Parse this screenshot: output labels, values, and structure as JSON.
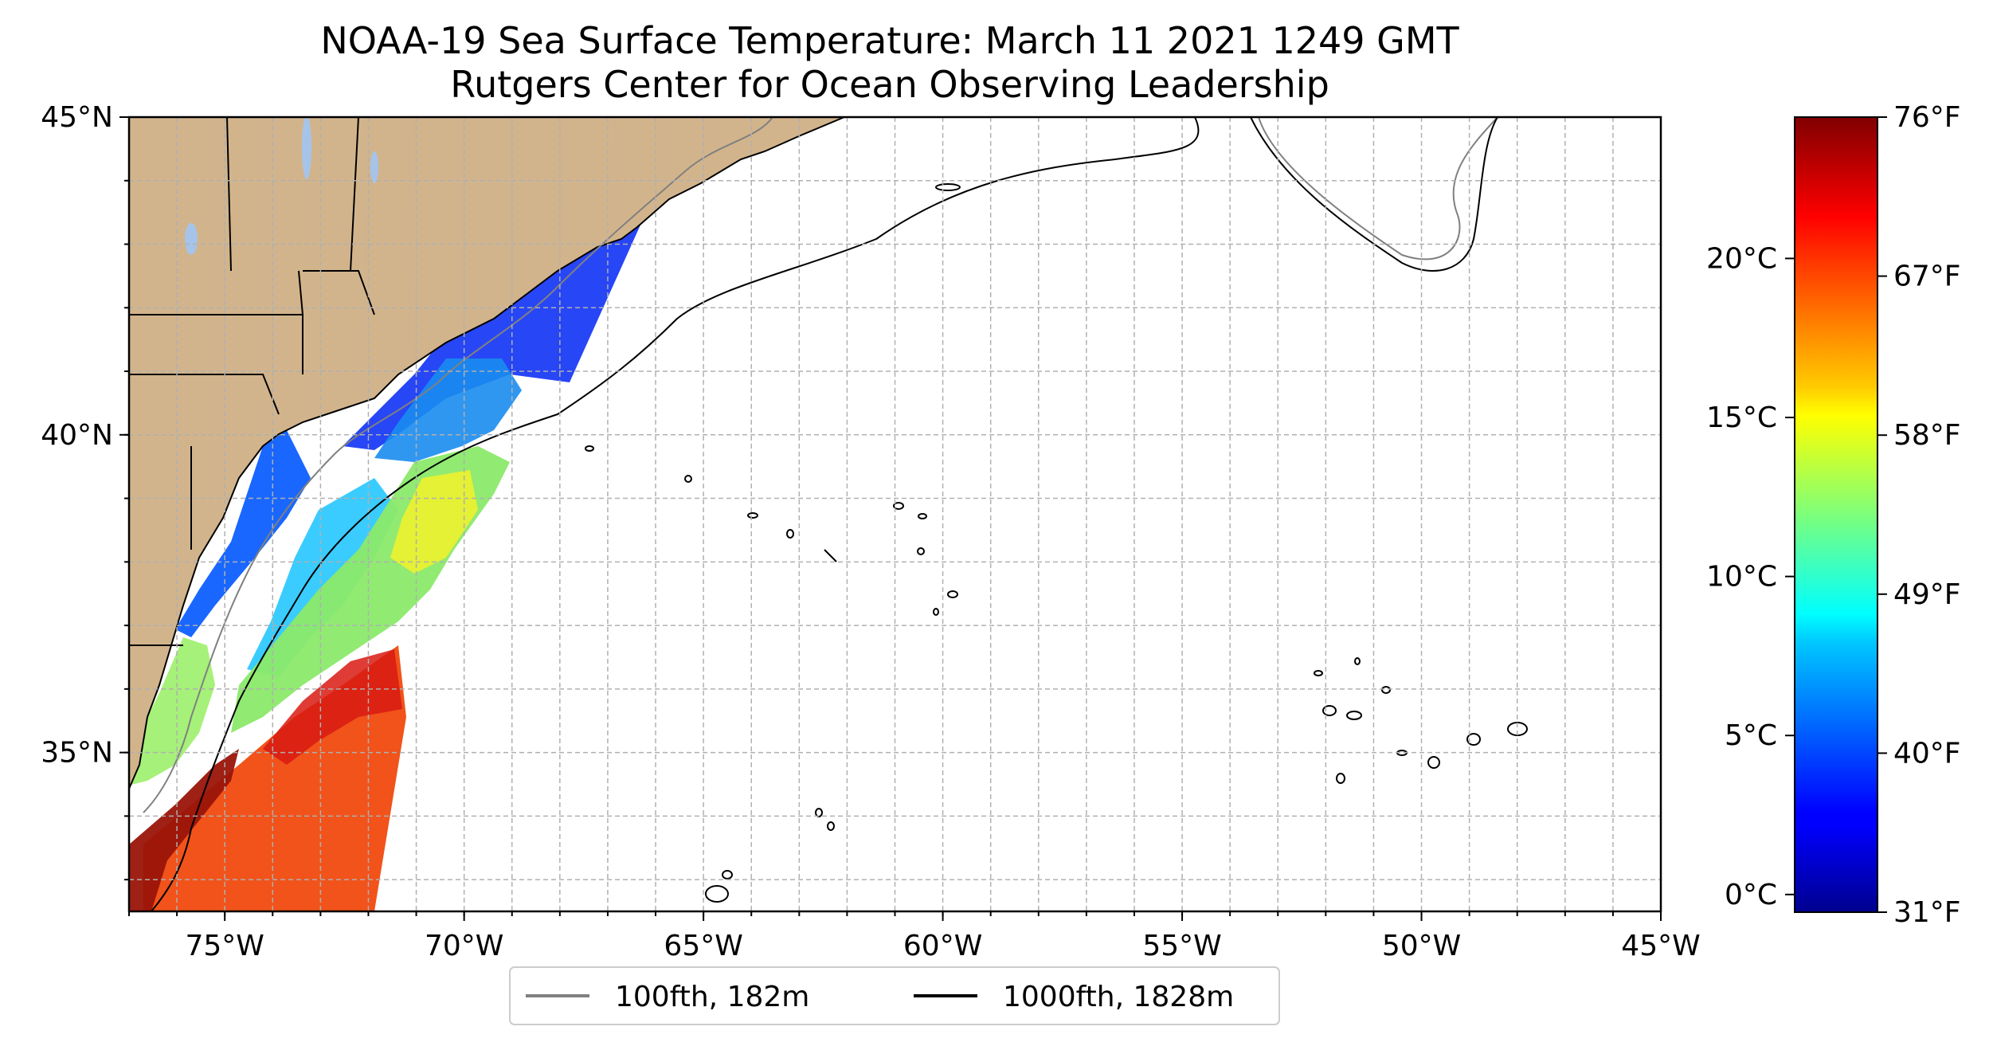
{
  "title": "NOAA-19 Sea Surface Temperature: March 11 2021 1249 GMT",
  "subtitle": "Rutgers Center for Ocean Observing Leadership",
  "map": {
    "lon_range": [
      -77,
      -45
    ],
    "lat_range": [
      32.5,
      45
    ],
    "lon_ticks": [
      {
        "value": -75,
        "label": "75°W"
      },
      {
        "value": -70,
        "label": "70°W"
      },
      {
        "value": -65,
        "label": "65°W"
      },
      {
        "value": -60,
        "label": "60°W"
      },
      {
        "value": -55,
        "label": "55°W"
      },
      {
        "value": -50,
        "label": "50°W"
      },
      {
        "value": -45,
        "label": "45°W"
      }
    ],
    "lat_ticks": [
      {
        "value": 35,
        "label": "35°N"
      },
      {
        "value": 40,
        "label": "40°N"
      },
      {
        "value": 45,
        "label": "45°N"
      }
    ],
    "grid": true,
    "land_color": "#d2b48c",
    "lake_color": "#a6c4ea",
    "contour_100_color": "#808080",
    "contour_1000_color": "#000000"
  },
  "legend": {
    "items": [
      {
        "label": "100fth, 182m",
        "color": "#808080"
      },
      {
        "label": "1000fth, 1828m",
        "color": "#000000"
      }
    ],
    "placement": "bottom-center"
  },
  "colorbar": {
    "colormap": "jet",
    "celsius_ticks": [
      {
        "value": 0,
        "label": "0°C"
      },
      {
        "value": 5,
        "label": "5°C"
      },
      {
        "value": 10,
        "label": "10°C"
      },
      {
        "value": 15,
        "label": "15°C"
      },
      {
        "value": 20,
        "label": "20°C"
      }
    ],
    "fahrenheit_ticks": [
      {
        "value": 31,
        "label": "31°F"
      },
      {
        "value": 40,
        "label": "40°F"
      },
      {
        "value": 49,
        "label": "49°F"
      },
      {
        "value": 58,
        "label": "58°F"
      },
      {
        "value": 67,
        "label": "67°F"
      },
      {
        "value": 76,
        "label": "76°F"
      }
    ],
    "range_f": [
      31,
      76
    ]
  }
}
